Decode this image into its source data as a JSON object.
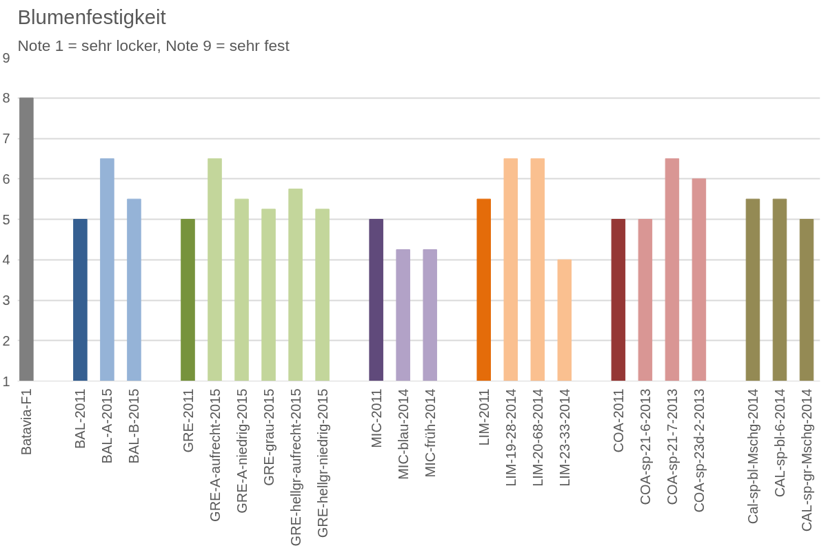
{
  "chart_data": {
    "type": "bar",
    "title": "Blumenfestigkeit",
    "subtitle": "Note 1 = sehr locker, Note 9 = sehr fest",
    "categories": [
      "Batavia-F1",
      null,
      "BAL-2011",
      "BAL-A-2015",
      "BAL-B-2015",
      null,
      "GRE-2011",
      "GRE-A-aufrecht-2015",
      "GRE-A-niedrig-2015",
      "GRE-grau-2015",
      "GRE-hellgr-aufrecht-2015",
      "GRE-hellgr-niedrig-2015",
      null,
      "MIC-2011",
      "MIC-blau-2014",
      "MIC-früh-2014",
      null,
      "LIM-2011",
      "LIM-19-28-2014",
      "LIM-20-68-2014",
      "LIM-23-33-2014",
      null,
      "COA-2011",
      "COA-sp-21-6-2013",
      "COA-sp-21-7-2013",
      "COA-sp-23d-2-2013",
      null,
      "Cal-sp-bl-Mschg-2014",
      "CAL-sp-bl-6-2014",
      "CAL-sp-gr-Mschg-2014"
    ],
    "values": [
      8,
      null,
      5,
      6.5,
      5.5,
      null,
      5,
      6.5,
      5.5,
      5.25,
      5.75,
      5.25,
      null,
      5,
      4.25,
      4.25,
      null,
      5.5,
      6.5,
      6.5,
      4,
      null,
      5,
      5,
      6.5,
      6,
      null,
      5.5,
      5.5,
      5
    ],
    "colors": [
      "#7f7f7f",
      null,
      "#355f91",
      "#95b3d7",
      "#95b3d7",
      null,
      "#77933c",
      "#c3d69b",
      "#c3d69b",
      "#c3d69b",
      "#c3d69b",
      "#c3d69b",
      null,
      "#604a7b",
      "#b2a2c7",
      "#b2a2c7",
      null,
      "#e46c0a",
      "#fac090",
      "#fac090",
      "#fac090",
      null,
      "#953735",
      "#d99694",
      "#d99694",
      "#d99694",
      null,
      "#948a54",
      "#948a54",
      "#948a54"
    ],
    "ylim": [
      1,
      9
    ],
    "yticks": [
      1,
      2,
      3,
      4,
      5,
      6,
      7,
      8,
      9
    ],
    "grid": "y"
  }
}
